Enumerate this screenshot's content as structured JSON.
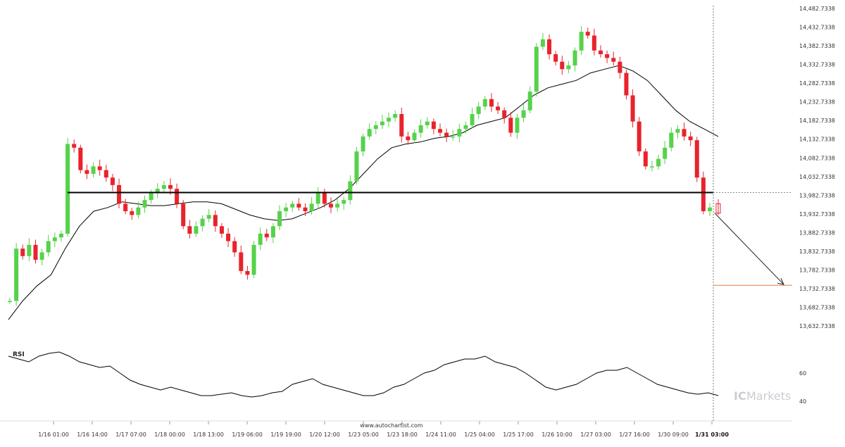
{
  "chart_data": [
    {
      "type": "candlestick",
      "title": "",
      "xlabel": "",
      "ylabel": "",
      "y_ticks": [
        "14,482.7338",
        "14,432.7338",
        "14,382.7338",
        "14,332.7338",
        "14,282.7338",
        "14,232.7338",
        "14,182.7338",
        "14,132.7338",
        "14,082.7338",
        "14,032.7338",
        "13,982.7338",
        "13,932.7338",
        "13,882.7338",
        "13,832.7338",
        "13,782.7338",
        "13,732.7338",
        "13,682.7338",
        "13,632.7338"
      ],
      "ylim": [
        13620,
        14490
      ],
      "x_ticks": [
        "1/16 01:00",
        "1/16 14:00",
        "1/17 07:00",
        "1/18 00:00",
        "1/18 13:00",
        "1/19 06:00",
        "1/19 19:00",
        "1/20 12:00",
        "1/23 05:00",
        "1/23 18:00",
        "1/24 11:00",
        "1/25 04:00",
        "1/25 17:00",
        "1/26 10:00",
        "1/27 03:00",
        "1/27 16:00",
        "1/30 09:00",
        "1/31 03:00"
      ],
      "active_x_tick": "1/31 03:00",
      "support_level": 13990,
      "forecast_level": 13742,
      "close_price_path": [
        13700,
        13840,
        13820,
        13850,
        13810,
        13830,
        13860,
        13870,
        13880,
        14120,
        14110,
        14050,
        14040,
        14060,
        14050,
        14030,
        14010,
        13960,
        13940,
        13930,
        13950,
        13970,
        13990,
        14000,
        14010,
        14000,
        13960,
        13900,
        13880,
        13900,
        13920,
        13930,
        13900,
        13880,
        13860,
        13830,
        13780,
        13770,
        13850,
        13880,
        13870,
        13900,
        13940,
        13950,
        13960,
        13950,
        13940,
        13960,
        13990,
        13960,
        13950,
        13960,
        13970,
        14020,
        14100,
        14140,
        14160,
        14170,
        14180,
        14190,
        14200,
        14140,
        14130,
        14150,
        14170,
        14180,
        14160,
        14150,
        14140,
        14140,
        14160,
        14170,
        14200,
        14220,
        14240,
        14220,
        14210,
        14190,
        14150,
        14190,
        14210,
        14260,
        14380,
        14400,
        14360,
        14340,
        14320,
        14330,
        14370,
        14420,
        14410,
        14370,
        14360,
        14350,
        14340,
        14310,
        14250,
        14180,
        14100,
        14060,
        14060,
        14080,
        14110,
        14150,
        14160,
        14140,
        14130,
        14030,
        13940,
        13950
      ],
      "moving_average": [
        13650,
        13700,
        13740,
        13770,
        13840,
        13900,
        13940,
        13950,
        13965,
        13960,
        13955,
        13955,
        13960,
        13965,
        13965,
        13960,
        13945,
        13930,
        13920,
        13915,
        13920,
        13935,
        13950,
        13970,
        14000,
        14040,
        14080,
        14110,
        14120,
        14125,
        14135,
        14140,
        14150,
        14170,
        14180,
        14190,
        14220,
        14250,
        14270,
        14280,
        14290,
        14310,
        14320,
        14330,
        14315,
        14290,
        14250,
        14210,
        14180,
        14160,
        14140
      ],
      "rsi": {
        "label": "RSI",
        "ticks": [
          "60",
          "40"
        ],
        "ylim": [
          30,
          80
        ],
        "values": [
          72,
          70,
          68,
          72,
          74,
          75,
          72,
          68,
          66,
          64,
          65,
          60,
          55,
          52,
          50,
          48,
          50,
          48,
          46,
          44,
          44,
          45,
          46,
          44,
          43,
          44,
          46,
          47,
          52,
          54,
          56,
          52,
          50,
          48,
          46,
          44,
          44,
          46,
          50,
          52,
          56,
          60,
          62,
          66,
          68,
          70,
          70,
          72,
          68,
          66,
          64,
          60,
          55,
          50,
          48,
          50,
          52,
          56,
          60,
          62,
          62,
          64,
          60,
          56,
          52,
          50,
          48,
          46,
          45,
          46,
          44
        ]
      },
      "footer": "www.autochartist.com",
      "watermark": {
        "prefix": "IC",
        "suffix": "Markets"
      },
      "colors": {
        "up": "#56d24a",
        "down": "#e8232b",
        "support": "#000000",
        "forecast": "#e3813c",
        "ma": "#000000",
        "rsi": "#000000",
        "grid": "#cccccc"
      }
    }
  ]
}
